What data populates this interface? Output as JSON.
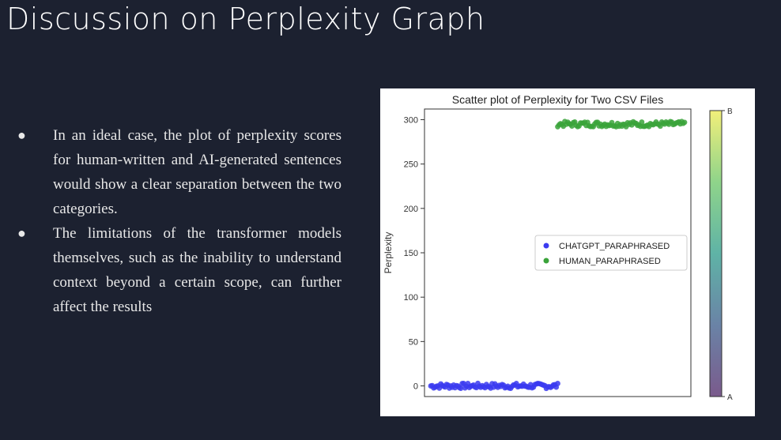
{
  "slide": {
    "title": "Discussion on Perplexity Graph",
    "bullets": [
      "In an ideal case, the plot of perplexity scores for human-written and AI-generated sentences would show a clear separation between the two categories.",
      "The limitations of the transformer models themselves, such as the inability to understand context beyond a certain scope, can further affect the results"
    ],
    "bullet_glyph": "●"
  },
  "chart_data": {
    "type": "scatter",
    "title": "Scatter plot of Perplexity for Two CSV Files",
    "xlabel": "",
    "ylabel": "Perplexity",
    "ylim": [
      -12,
      312
    ],
    "yticks": [
      0,
      50,
      100,
      150,
      200,
      250,
      300
    ],
    "grid": false,
    "legend_position": "center-right",
    "series": [
      {
        "name": "CHATGPT_PARAPHRASED",
        "color": "#3b3bf0",
        "x_range": [
          0,
          0.5
        ],
        "y_value": 0,
        "y_jitter": 3
      },
      {
        "name": "HUMAN_PARAPHRASED",
        "color": "#3aa33a",
        "x_range": [
          0.5,
          1.0
        ],
        "y_value": 295,
        "y_jitter": 3
      }
    ],
    "colorbar": {
      "top_label": "B",
      "bottom_label": "A",
      "colormap": "viridis"
    }
  }
}
